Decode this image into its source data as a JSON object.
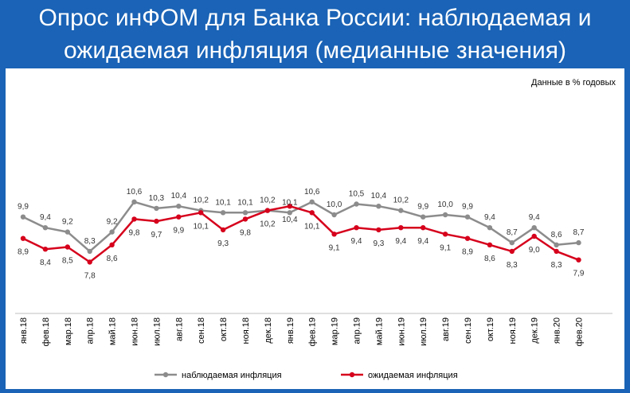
{
  "title_line1": "Опрос инФОМ для Банка России: наблюдаемая и",
  "title_line2": "ожидаемая инфляция (медианные значения)",
  "colors": {
    "background": "#1a63b6",
    "observed": "#8c8c8c",
    "expected": "#d6001c",
    "panel": "#ffffff"
  },
  "chart_data": {
    "type": "line",
    "unit_note": "Данные в % годовых",
    "categories": [
      "янв.18",
      "фев.18",
      "мар.18",
      "апр.18",
      "май.18",
      "июн.18",
      "июл.18",
      "авг.18",
      "сен.18",
      "окт.18",
      "ноя.18",
      "дек.18",
      "янв.19",
      "фев.19",
      "мар.19",
      "апр.19",
      "май.19",
      "июн.19",
      "июл.19",
      "авг.19",
      "сен.19",
      "окт.19",
      "ноя.19",
      "дек.19",
      "янв.20",
      "фев.20"
    ],
    "series": [
      {
        "name": "наблюдаемая инфляция",
        "values": [
          9.9,
          9.4,
          9.2,
          8.3,
          9.2,
          10.6,
          10.3,
          10.4,
          10.2,
          10.1,
          10.1,
          10.2,
          10.1,
          10.6,
          10.0,
          10.5,
          10.4,
          10.2,
          9.9,
          10.0,
          9.9,
          9.4,
          8.7,
          9.4,
          8.6,
          8.7
        ],
        "labels": [
          "9,9",
          "9,4",
          "9,2",
          "8,3",
          "9,2",
          "10,6",
          "10,3",
          "10,4",
          "10,2",
          "10,1",
          "10,1",
          "10,2",
          "10,1",
          "10,6",
          "10,0",
          "10,5",
          "10,4",
          "10,2",
          "9,9",
          "10,0",
          "9,9",
          "9,4",
          "8,7",
          "9,4",
          "8,6",
          "8,7"
        ]
      },
      {
        "name": "ожидаемая инфляция",
        "values": [
          8.9,
          8.4,
          8.5,
          7.8,
          8.6,
          9.8,
          9.7,
          9.9,
          10.1,
          9.3,
          9.8,
          10.2,
          10.4,
          10.1,
          9.1,
          9.4,
          9.3,
          9.4,
          9.4,
          9.1,
          8.9,
          8.6,
          8.3,
          9.0,
          8.3,
          7.9
        ],
        "labels": [
          "8,9",
          "8,4",
          "8,5",
          "7,8",
          "8,6",
          "9,8",
          "9,7",
          "9,9",
          "10,1",
          "9,3",
          "9,8",
          "10,2",
          "10,4",
          "10,1",
          "9,1",
          "9,4",
          "9,3",
          "9,4",
          "9,4",
          "9,1",
          "8,9",
          "8,6",
          "8,3",
          "9,0",
          "8,3",
          "7,9"
        ]
      }
    ],
    "legend_placement": "bottom",
    "grid": false
  }
}
